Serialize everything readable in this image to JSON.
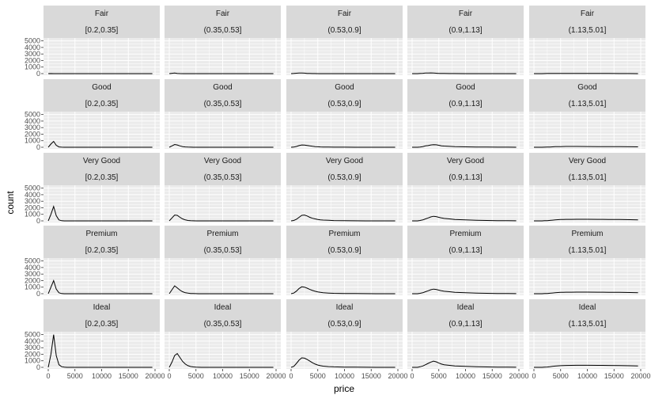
{
  "chart_data": {
    "type": "line",
    "xlabel": "price",
    "ylabel": "count",
    "xlim": [
      0,
      20000
    ],
    "ylim": [
      0,
      5200
    ],
    "x_ticks": [
      0,
      5000,
      10000,
      15000,
      20000
    ],
    "x_tick_labels": [
      "0",
      "5000",
      "10000",
      "15000",
      "20000"
    ],
    "y_ticks": [
      0,
      1000,
      2000,
      3000,
      4000,
      5000
    ],
    "y_tick_labels": [
      "0",
      "1000",
      "2000",
      "3000",
      "4000",
      "5000"
    ],
    "grid": true,
    "row_facets": [
      "Fair",
      "Good",
      "Very Good",
      "Premium",
      "Ideal"
    ],
    "col_facets": [
      "[0.2,0.35]",
      "(0.35,0.53]",
      "(0.53,0.9]",
      "(0.9,1.13]",
      "(1.13,5.01]"
    ],
    "x": [
      0,
      500,
      1000,
      1500,
      2000,
      2500,
      3000,
      3500,
      4000,
      4500,
      5000,
      5500,
      6000,
      7000,
      8000,
      10000,
      12000,
      14000,
      16000,
      18000,
      19500
    ],
    "panels": [
      [
        {
          "values": [
            0,
            10,
            5,
            0,
            0,
            0,
            0,
            0,
            0,
            0,
            0,
            0,
            0,
            0,
            0,
            0,
            0,
            0,
            0,
            0,
            0
          ]
        },
        {
          "values": [
            0,
            50,
            80,
            40,
            15,
            5,
            0,
            0,
            0,
            0,
            0,
            0,
            0,
            0,
            0,
            0,
            0,
            0,
            0,
            0,
            0
          ]
        },
        {
          "values": [
            0,
            20,
            60,
            90,
            100,
            70,
            40,
            25,
            15,
            10,
            5,
            5,
            0,
            0,
            0,
            0,
            0,
            0,
            0,
            0,
            0
          ]
        },
        {
          "values": [
            0,
            0,
            0,
            20,
            50,
            80,
            100,
            110,
            90,
            60,
            40,
            30,
            25,
            15,
            10,
            5,
            5,
            0,
            0,
            0,
            0
          ]
        },
        {
          "values": [
            0,
            0,
            0,
            0,
            10,
            20,
            25,
            30,
            35,
            40,
            40,
            40,
            40,
            40,
            35,
            30,
            25,
            20,
            15,
            10,
            5
          ]
        }
      ],
      [
        {
          "values": [
            0,
            500,
            900,
            300,
            50,
            10,
            0,
            0,
            0,
            0,
            0,
            0,
            0,
            0,
            0,
            0,
            0,
            0,
            0,
            0,
            0
          ]
        },
        {
          "values": [
            0,
            200,
            420,
            350,
            200,
            100,
            50,
            20,
            10,
            5,
            0,
            0,
            0,
            0,
            0,
            0,
            0,
            0,
            0,
            0,
            0
          ]
        },
        {
          "values": [
            0,
            30,
            120,
            250,
            350,
            330,
            280,
            200,
            150,
            100,
            70,
            50,
            40,
            25,
            15,
            10,
            5,
            0,
            0,
            0,
            0
          ]
        },
        {
          "values": [
            0,
            0,
            0,
            40,
            100,
            200,
            250,
            350,
            400,
            380,
            300,
            220,
            180,
            130,
            100,
            60,
            40,
            25,
            15,
            10,
            5
          ]
        },
        {
          "values": [
            0,
            0,
            0,
            0,
            10,
            20,
            40,
            60,
            80,
            90,
            100,
            110,
            115,
            115,
            115,
            110,
            100,
            90,
            80,
            70,
            60
          ]
        }
      ],
      [
        {
          "values": [
            0,
            1000,
            2200,
            800,
            150,
            30,
            5,
            0,
            0,
            0,
            0,
            0,
            0,
            0,
            0,
            0,
            0,
            0,
            0,
            0,
            0
          ]
        },
        {
          "values": [
            0,
            450,
            900,
            850,
            550,
            300,
            150,
            60,
            30,
            15,
            5,
            0,
            0,
            0,
            0,
            0,
            0,
            0,
            0,
            0,
            0
          ]
        },
        {
          "values": [
            0,
            60,
            250,
            550,
            850,
            900,
            750,
            550,
            400,
            300,
            220,
            160,
            120,
            80,
            50,
            30,
            15,
            5,
            0,
            0,
            0
          ]
        },
        {
          "values": [
            0,
            0,
            0,
            60,
            150,
            300,
            450,
            600,
            700,
            650,
            550,
            450,
            380,
            300,
            220,
            150,
            100,
            60,
            40,
            25,
            15
          ]
        },
        {
          "values": [
            0,
            0,
            0,
            0,
            20,
            40,
            70,
            110,
            150,
            180,
            200,
            215,
            225,
            235,
            240,
            240,
            235,
            220,
            200,
            180,
            160
          ]
        }
      ],
      [
        {
          "values": [
            0,
            1000,
            2000,
            700,
            150,
            30,
            5,
            0,
            0,
            0,
            0,
            0,
            0,
            0,
            0,
            0,
            0,
            0,
            0,
            0,
            0
          ]
        },
        {
          "values": [
            0,
            600,
            1200,
            900,
            550,
            300,
            150,
            80,
            40,
            20,
            10,
            5,
            0,
            0,
            0,
            0,
            0,
            0,
            0,
            0,
            0
          ]
        },
        {
          "values": [
            0,
            100,
            400,
            800,
            1050,
            1000,
            850,
            650,
            500,
            380,
            280,
            200,
            150,
            100,
            60,
            40,
            20,
            10,
            5,
            0,
            0
          ]
        },
        {
          "values": [
            0,
            0,
            0,
            60,
            150,
            300,
            450,
            600,
            700,
            650,
            550,
            450,
            380,
            300,
            220,
            150,
            100,
            60,
            40,
            25,
            15
          ]
        },
        {
          "values": [
            0,
            0,
            0,
            0,
            20,
            40,
            70,
            110,
            150,
            180,
            200,
            215,
            225,
            235,
            240,
            240,
            235,
            220,
            200,
            180,
            160
          ]
        }
      ],
      [
        {
          "values": [
            0,
            2000,
            5000,
            1800,
            400,
            100,
            20,
            0,
            0,
            0,
            0,
            0,
            0,
            0,
            0,
            0,
            0,
            0,
            0,
            0,
            0
          ]
        },
        {
          "values": [
            0,
            800,
            1800,
            2100,
            1500,
            900,
            500,
            250,
            120,
            60,
            30,
            10,
            5,
            0,
            0,
            0,
            0,
            0,
            0,
            0,
            0
          ]
        },
        {
          "values": [
            0,
            150,
            600,
            1100,
            1450,
            1400,
            1200,
            950,
            700,
            500,
            350,
            250,
            180,
            110,
            70,
            40,
            20,
            10,
            5,
            0,
            0
          ]
        },
        {
          "values": [
            0,
            0,
            0,
            80,
            200,
            400,
            600,
            800,
            950,
            850,
            650,
            500,
            400,
            300,
            220,
            150,
            100,
            60,
            40,
            25,
            15
          ]
        },
        {
          "values": [
            0,
            0,
            0,
            0,
            20,
            50,
            90,
            140,
            190,
            230,
            260,
            280,
            295,
            305,
            310,
            310,
            300,
            285,
            265,
            245,
            220
          ]
        }
      ]
    ]
  },
  "colors": {
    "background": "#ffffff",
    "panel_background": "#ebebeb",
    "strip_background": "#d9d9d9",
    "grid": "#ffffff",
    "line": "#000000",
    "text": "#1a1a1a",
    "tick_text": "#4d4d4d"
  }
}
